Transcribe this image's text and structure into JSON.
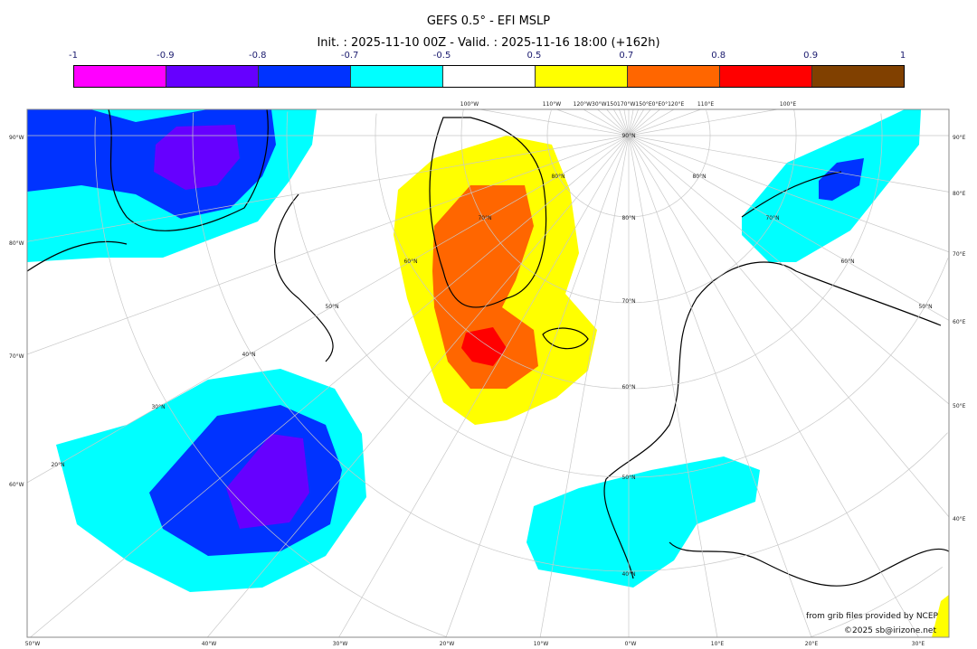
{
  "title": "GEFS 0.5° - EFI MSLP",
  "subtitle": "Init. : 2025-11-10 00Z - Valid. : 2025-11-16 18:00 (+162h)",
  "colorbar": {
    "ticks": [
      "-1",
      "-0.9",
      "-0.8",
      "-0.7",
      "-0.5",
      "0.5",
      "0.7",
      "0.8",
      "0.9",
      "1"
    ],
    "colors": [
      "#ff00ff",
      "#6600ff",
      "#0033ff",
      "#00ffff",
      "#ffffff",
      "#ffff00",
      "#ff6600",
      "#ff0000",
      "#804000"
    ]
  },
  "map": {
    "top_labels": [
      "100°W",
      "110°W",
      "120°W30°W150170°W150°E0°E0°120°E",
      "110°E",
      "100°E"
    ],
    "left_labels": [
      "90°W",
      "80°W",
      "70°W",
      "60°W"
    ],
    "right_labels": [
      "90°E",
      "80°E",
      "70°E",
      "60°E",
      "50°E",
      "40°E"
    ],
    "bottom_labels": [
      "50°W",
      "40°W",
      "30°W",
      "20°W",
      "10°W",
      "0°W",
      "10°E",
      "20°E",
      "30°E"
    ],
    "lat_labels": [
      "90°N",
      "80°N",
      "80°N",
      "80°N",
      "70°N",
      "70°N",
      "70°N",
      "60°N",
      "60°N",
      "60°N",
      "50°N",
      "50°N",
      "50°N",
      "40°N",
      "40°N",
      "30°N",
      "20°N"
    ]
  },
  "credits": {
    "source": "from grib files provided by NCEP",
    "copyright": "©2025 sb@irizone.net"
  }
}
